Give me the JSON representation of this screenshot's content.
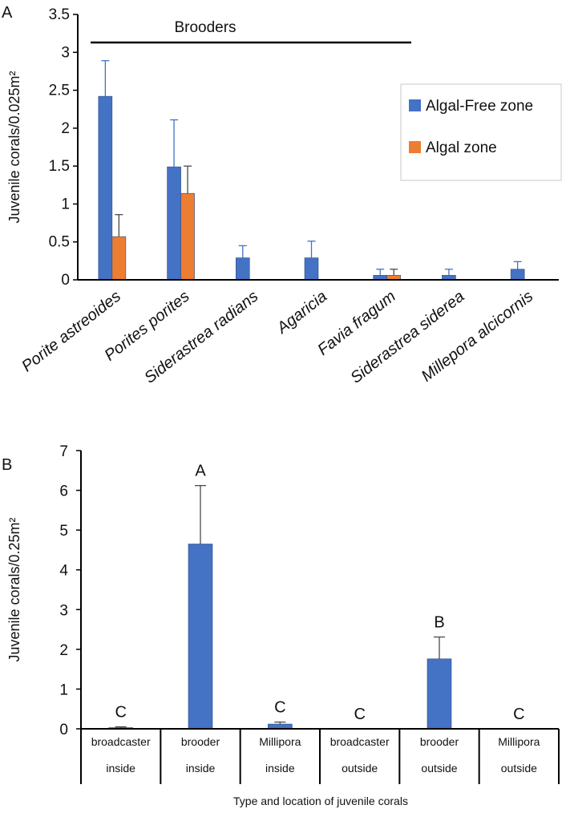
{
  "colors": {
    "algal_free": "#4472c4",
    "algal": "#ed7d31",
    "axis": "#000000"
  },
  "chart_data": [
    {
      "panel": "A",
      "type": "bar",
      "ylabel": "Juvenile corals/0.025m²",
      "ylim": [
        0,
        3.5
      ],
      "yticks": [
        "0",
        "0.5",
        "1",
        "1.5",
        "2",
        "2.5",
        "3",
        "3.5"
      ],
      "categories": [
        "Porite astreoides",
        "Porites porites",
        "Siderastrea radians",
        "Agaricia",
        "Favia fragum",
        "Siderastrea siderea",
        "Millepora alcicornis"
      ],
      "series": [
        {
          "name": "Algal-Free zone",
          "values": [
            2.42,
            1.49,
            0.29,
            0.29,
            0.06,
            0.06,
            0.14
          ],
          "errors": [
            0.47,
            0.62,
            0.16,
            0.22,
            0.08,
            0.08,
            0.1
          ]
        },
        {
          "name": "Algal zone",
          "values": [
            0.57,
            1.14,
            0,
            0,
            0.06,
            0,
            0
          ],
          "errors": [
            0.29,
            0.36,
            0,
            0,
            0.08,
            0,
            0
          ]
        }
      ],
      "annotation": "Brooders",
      "legend": "right"
    },
    {
      "panel": "B",
      "type": "bar",
      "ylabel": "Juvenile corals/0.25m²",
      "xlabel": "Type and location of juvenile corals",
      "ylim": [
        0,
        7
      ],
      "yticks": [
        "0",
        "1",
        "2",
        "3",
        "4",
        "5",
        "6",
        "7"
      ],
      "categories": [
        {
          "line1": "broadcaster",
          "line2": "inside"
        },
        {
          "line1": "brooder",
          "line2": "inside"
        },
        {
          "line1": "Millipora",
          "line2": "inside"
        },
        {
          "line1": "broadcaster",
          "line2": "outside"
        },
        {
          "line1": "brooder",
          "line2": "outside"
        },
        {
          "line1": "Millipora",
          "line2": "outside"
        }
      ],
      "values": [
        0.03,
        4.65,
        0.12,
        0,
        1.76,
        0
      ],
      "errors": [
        0.02,
        1.47,
        0.05,
        0,
        0.55,
        0
      ],
      "significance": [
        "C",
        "A",
        "C",
        "C",
        "B",
        "C"
      ]
    }
  ]
}
